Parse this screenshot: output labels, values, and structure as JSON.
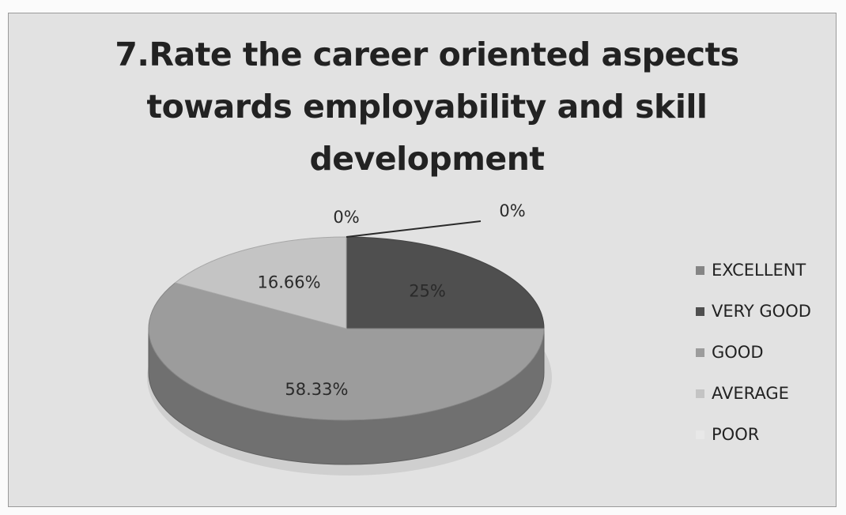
{
  "chart_data": {
    "type": "pie",
    "title_lines": [
      "7.Rate the career oriented aspects",
      "towards employability and skill",
      "development"
    ],
    "categories": [
      "EXCELLENT",
      "VERY GOOD",
      "GOOD",
      "AVERAGE",
      "POOR"
    ],
    "values": [
      0,
      25,
      58.33,
      16.66,
      0
    ],
    "data_labels": [
      "0%",
      "25%",
      "58.33%",
      "16.66%",
      "0%"
    ],
    "three_d": true,
    "legend_position": "right",
    "colors": [
      "#858585",
      "#4f4f4f",
      "#9c9c9c",
      "#c4c4c4",
      "#e8e8e8"
    ]
  }
}
